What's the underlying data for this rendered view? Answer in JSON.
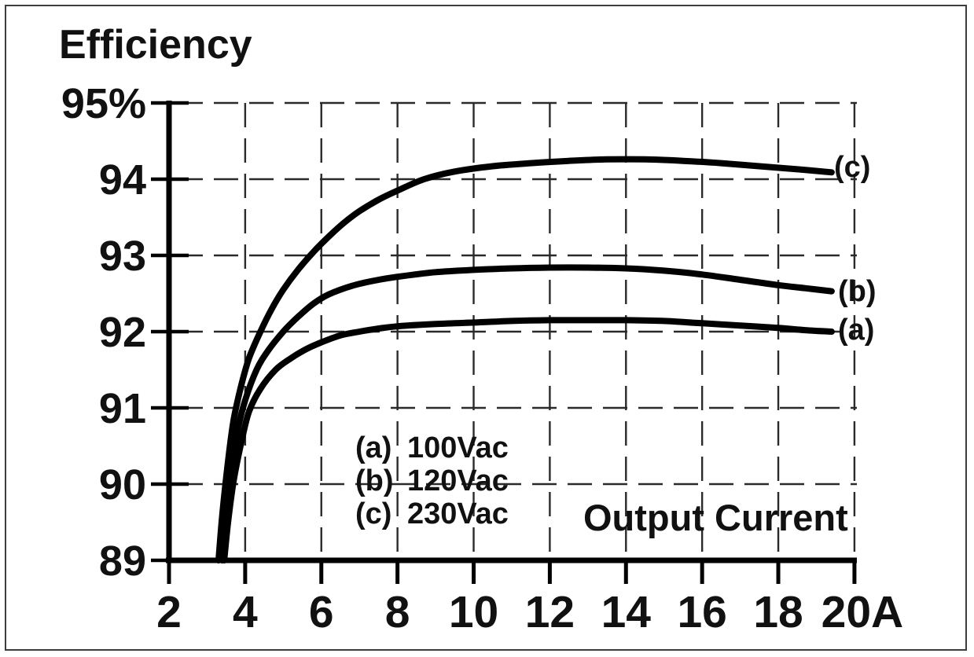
{
  "chart_data": {
    "type": "line",
    "title": "Efficiency",
    "xlabel": "Output Current",
    "ylabel": "Efficiency",
    "x_unit": "A",
    "y_unit": "%",
    "xlim": [
      2,
      20
    ],
    "ylim": [
      89,
      95
    ],
    "grid": "dashed gridlines at every tick, both axes",
    "legend_position": "inside lower-center",
    "x_ticks": [
      2,
      4,
      6,
      8,
      10,
      12,
      14,
      16,
      18,
      20
    ],
    "x_tick_labels": [
      "2",
      "4",
      "6",
      "8",
      "10",
      "12",
      "14",
      "16",
      "18",
      "20A"
    ],
    "y_ticks": [
      89,
      90,
      91,
      92,
      93,
      94,
      95
    ],
    "y_tick_labels": [
      "89",
      "90",
      "91",
      "92",
      "93",
      "94",
      "95%"
    ],
    "legend": [
      {
        "marker": "(a)",
        "label": "100Vac"
      },
      {
        "marker": "(b)",
        "label": "120Vac"
      },
      {
        "marker": "(c)",
        "label": "230Vac"
      }
    ],
    "series": [
      {
        "name": "(a) 100Vac",
        "curve_label": "(a)",
        "points": [
          [
            3.45,
            89.0
          ],
          [
            3.55,
            89.5
          ],
          [
            3.7,
            90.05
          ],
          [
            3.9,
            90.55
          ],
          [
            4.1,
            90.95
          ],
          [
            4.4,
            91.25
          ],
          [
            4.8,
            91.5
          ],
          [
            5.2,
            91.65
          ],
          [
            5.6,
            91.77
          ],
          [
            6.0,
            91.86
          ],
          [
            6.5,
            91.95
          ],
          [
            7.0,
            92.0
          ],
          [
            7.5,
            92.04
          ],
          [
            8.0,
            92.07
          ],
          [
            9.0,
            92.1
          ],
          [
            10.0,
            92.12
          ],
          [
            11.0,
            92.14
          ],
          [
            12.0,
            92.15
          ],
          [
            13.0,
            92.15
          ],
          [
            14.0,
            92.15
          ],
          [
            15.0,
            92.14
          ],
          [
            16.0,
            92.11
          ],
          [
            17.0,
            92.08
          ],
          [
            18.0,
            92.05
          ],
          [
            18.7,
            92.02
          ],
          [
            19.4,
            92.0
          ]
        ]
      },
      {
        "name": "(b) 120Vac",
        "curve_label": "(b)",
        "points": [
          [
            3.4,
            89.0
          ],
          [
            3.5,
            89.6
          ],
          [
            3.65,
            90.2
          ],
          [
            3.8,
            90.7
          ],
          [
            4.0,
            91.1
          ],
          [
            4.3,
            91.5
          ],
          [
            4.6,
            91.75
          ],
          [
            5.0,
            92.0
          ],
          [
            5.4,
            92.2
          ],
          [
            5.8,
            92.37
          ],
          [
            6.2,
            92.49
          ],
          [
            6.8,
            92.6
          ],
          [
            7.4,
            92.67
          ],
          [
            8.0,
            92.72
          ],
          [
            9.0,
            92.78
          ],
          [
            10.0,
            92.81
          ],
          [
            11.0,
            92.83
          ],
          [
            12.0,
            92.84
          ],
          [
            13.0,
            92.84
          ],
          [
            14.0,
            92.83
          ],
          [
            15.0,
            92.8
          ],
          [
            16.0,
            92.75
          ],
          [
            17.0,
            92.68
          ],
          [
            18.0,
            92.61
          ],
          [
            18.7,
            92.57
          ],
          [
            19.4,
            92.53
          ]
        ]
      },
      {
        "name": "(c) 230Vac",
        "curve_label": "(c)",
        "points": [
          [
            3.3,
            89.0
          ],
          [
            3.4,
            89.6
          ],
          [
            3.55,
            90.3
          ],
          [
            3.7,
            90.85
          ],
          [
            3.9,
            91.3
          ],
          [
            4.1,
            91.65
          ],
          [
            4.4,
            92.0
          ],
          [
            4.7,
            92.3
          ],
          [
            5.0,
            92.55
          ],
          [
            5.4,
            92.82
          ],
          [
            5.8,
            93.05
          ],
          [
            6.2,
            93.25
          ],
          [
            6.6,
            93.43
          ],
          [
            7.0,
            93.58
          ],
          [
            7.5,
            93.73
          ],
          [
            8.0,
            93.85
          ],
          [
            8.7,
            94.0
          ],
          [
            9.5,
            94.1
          ],
          [
            10.5,
            94.17
          ],
          [
            11.5,
            94.21
          ],
          [
            12.5,
            94.24
          ],
          [
            13.5,
            94.26
          ],
          [
            14.5,
            94.26
          ],
          [
            15.5,
            94.24
          ],
          [
            16.5,
            94.21
          ],
          [
            17.5,
            94.17
          ],
          [
            18.5,
            94.13
          ],
          [
            19.4,
            94.09
          ]
        ]
      }
    ],
    "colors": {
      "curve": "#000000",
      "axis": "#000000",
      "grid": "#2a2a2a",
      "text": "#111111",
      "background": "#ffffff",
      "border": "#3d3d3d"
    }
  }
}
